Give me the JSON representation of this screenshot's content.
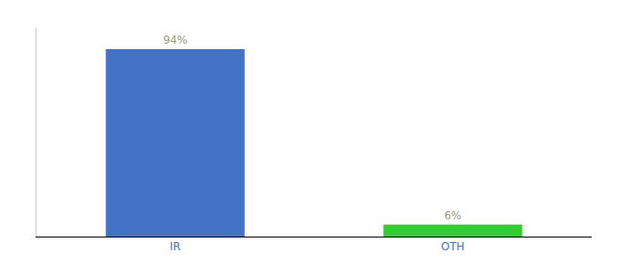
{
  "chart_data": {
    "type": "bar",
    "categories": [
      "IR",
      "OTH"
    ],
    "values": [
      94,
      6
    ],
    "value_labels": [
      "94%",
      "6%"
    ],
    "colors": [
      "#4472c4",
      "#33cc33"
    ],
    "ylim": [
      0,
      105
    ],
    "data_labels": true,
    "tick_labels": "x",
    "grid": false
  }
}
